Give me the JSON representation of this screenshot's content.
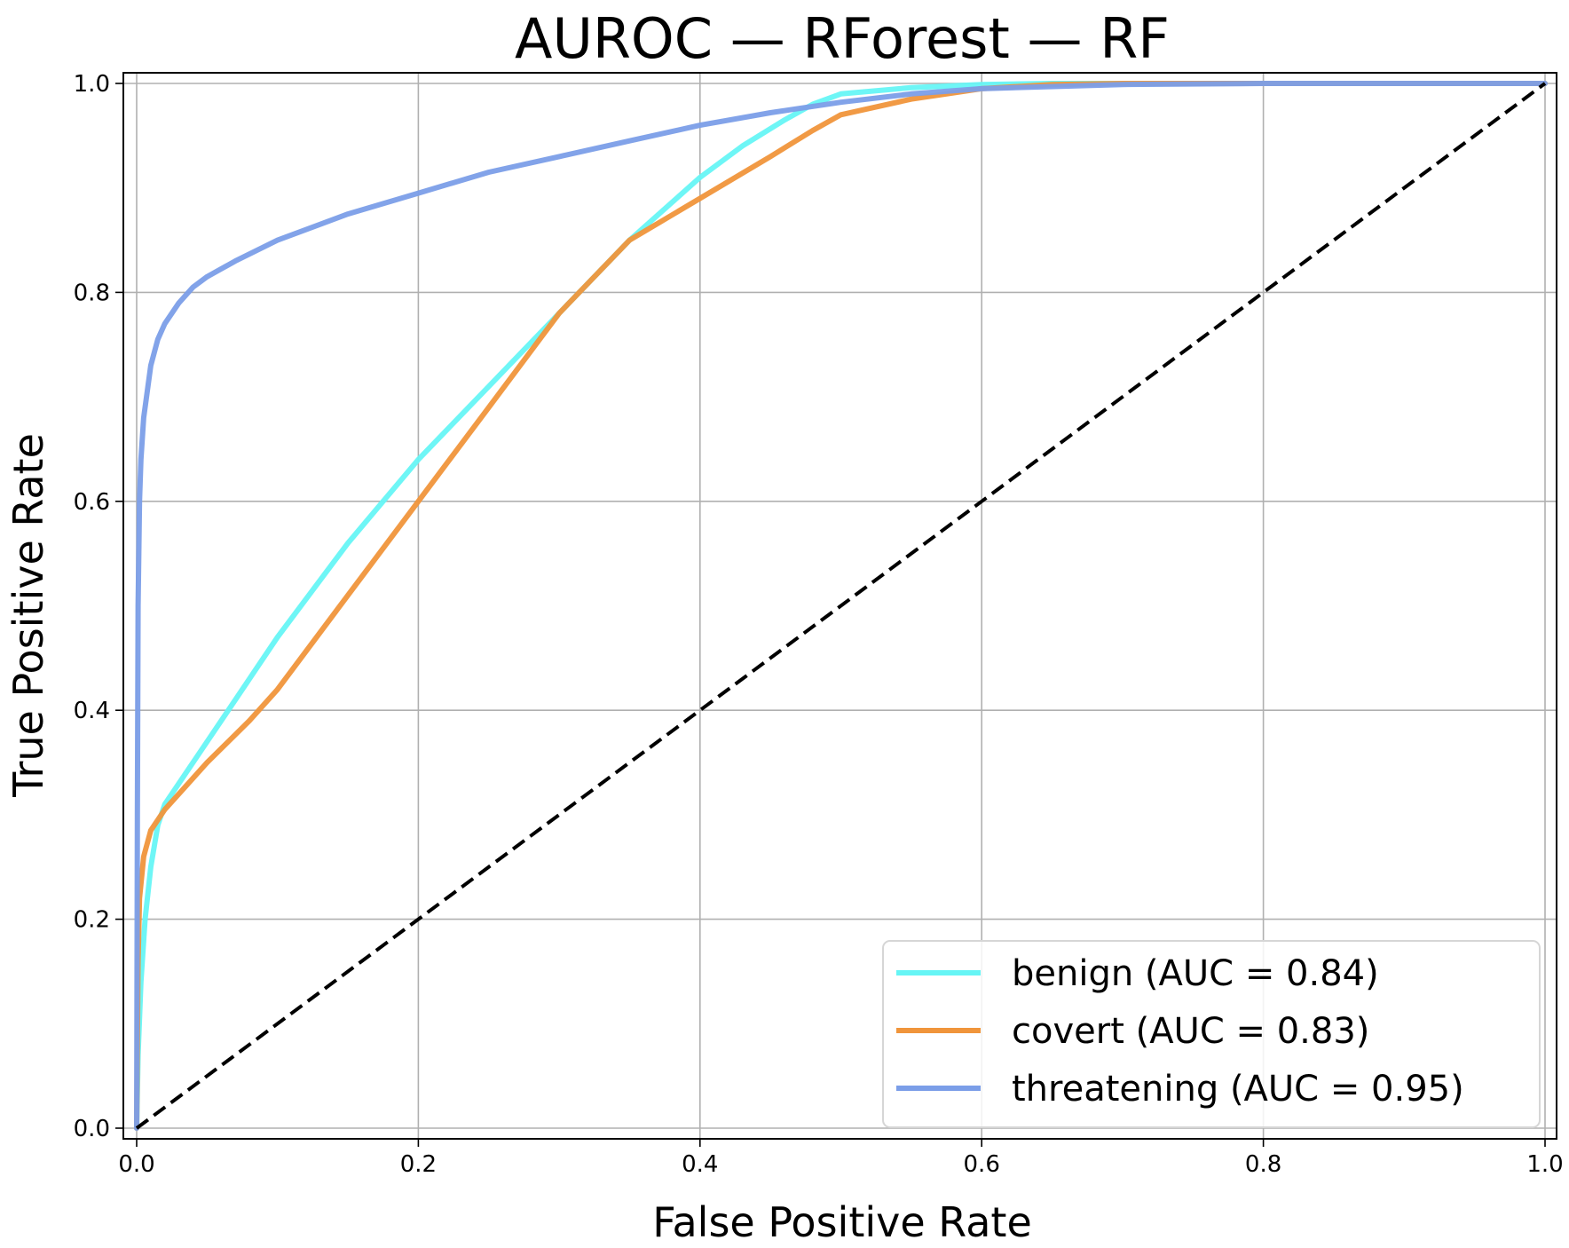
{
  "chart_data": {
    "type": "line",
    "title": "AUROC — RForest — RF",
    "xlabel": "False Positive Rate",
    "ylabel": "True Positive Rate",
    "xlim": [
      0.0,
      1.0
    ],
    "ylim": [
      0.0,
      1.0
    ],
    "xticks": [
      0.0,
      0.2,
      0.4,
      0.6,
      0.8,
      1.0
    ],
    "yticks": [
      0.0,
      0.2,
      0.4,
      0.6,
      0.8,
      1.0
    ],
    "xtick_labels": [
      "0.0",
      "0.2",
      "0.4",
      "0.6",
      "0.8",
      "1.0"
    ],
    "ytick_labels": [
      "0.0",
      "0.2",
      "0.4",
      "0.6",
      "0.8",
      "1.0"
    ],
    "grid": true,
    "legend_position": "bottom-right",
    "series": [
      {
        "name": "benign",
        "label": "benign (AUC = 0.84)",
        "auc": 0.84,
        "color": "#66f5f5",
        "x": [
          0.0,
          0.001,
          0.003,
          0.006,
          0.01,
          0.015,
          0.02,
          0.03,
          0.05,
          0.08,
          0.1,
          0.15,
          0.2,
          0.25,
          0.3,
          0.35,
          0.4,
          0.43,
          0.46,
          0.48,
          0.5,
          0.55,
          0.6,
          0.65,
          0.7,
          0.8,
          0.9,
          1.0
        ],
        "y": [
          0.0,
          0.07,
          0.14,
          0.2,
          0.25,
          0.29,
          0.31,
          0.33,
          0.37,
          0.43,
          0.47,
          0.56,
          0.64,
          0.71,
          0.78,
          0.85,
          0.91,
          0.94,
          0.965,
          0.98,
          0.99,
          0.996,
          0.999,
          1.0,
          1.0,
          1.0,
          1.0,
          1.0
        ]
      },
      {
        "name": "covert",
        "label": "covert (AUC = 0.83)",
        "auc": 0.83,
        "color": "#f0953b",
        "x": [
          0.0,
          0.001,
          0.002,
          0.005,
          0.01,
          0.02,
          0.03,
          0.05,
          0.08,
          0.1,
          0.15,
          0.2,
          0.25,
          0.3,
          0.35,
          0.4,
          0.45,
          0.48,
          0.5,
          0.55,
          0.6,
          0.65,
          0.7,
          0.8,
          0.9,
          1.0
        ],
        "y": [
          0.0,
          0.16,
          0.22,
          0.26,
          0.285,
          0.305,
          0.32,
          0.35,
          0.39,
          0.42,
          0.51,
          0.6,
          0.69,
          0.78,
          0.85,
          0.89,
          0.93,
          0.955,
          0.97,
          0.985,
          0.995,
          0.999,
          1.0,
          1.0,
          1.0,
          1.0
        ]
      },
      {
        "name": "threatening",
        "label": "threatening (AUC = 0.95)",
        "auc": 0.95,
        "color": "#7b9ee8",
        "x": [
          0.0,
          0.0005,
          0.001,
          0.002,
          0.003,
          0.005,
          0.008,
          0.01,
          0.015,
          0.02,
          0.03,
          0.04,
          0.05,
          0.07,
          0.1,
          0.15,
          0.2,
          0.25,
          0.3,
          0.35,
          0.4,
          0.45,
          0.5,
          0.55,
          0.6,
          0.7,
          0.8,
          0.9,
          1.0
        ],
        "y": [
          0.0,
          0.3,
          0.5,
          0.6,
          0.64,
          0.68,
          0.71,
          0.73,
          0.755,
          0.77,
          0.79,
          0.805,
          0.815,
          0.83,
          0.85,
          0.875,
          0.895,
          0.915,
          0.93,
          0.945,
          0.96,
          0.972,
          0.982,
          0.99,
          0.995,
          0.999,
          1.0,
          1.0,
          1.0
        ]
      }
    ],
    "reference_line": {
      "name": "chance",
      "style": "dashed",
      "color": "#000000",
      "x": [
        0.0,
        1.0
      ],
      "y": [
        0.0,
        1.0
      ]
    }
  }
}
